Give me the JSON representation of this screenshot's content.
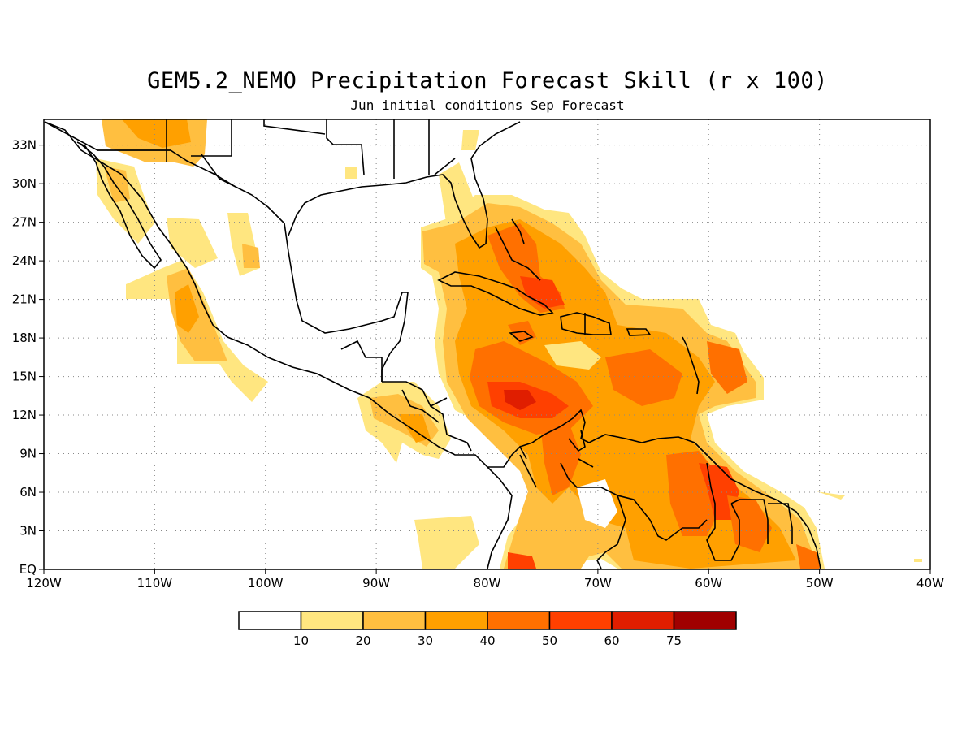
{
  "title": "GEM5.2_NEMO Precipitation Forecast Skill (r x 100)",
  "subtitle": "Jun initial conditions  Sep Forecast",
  "map": {
    "lon_range": [
      -120,
      -40
    ],
    "lat_range": [
      0,
      35
    ],
    "lon_ticks": [
      "120W",
      "110W",
      "100W",
      "90W",
      "80W",
      "70W",
      "60W",
      "50W",
      "40W"
    ],
    "lat_ticks": [
      "EQ",
      "3N",
      "6N",
      "9N",
      "12N",
      "15N",
      "18N",
      "21N",
      "24N",
      "27N",
      "30N",
      "33N"
    ],
    "grid": true
  },
  "colorbar": {
    "labels": [
      "10",
      "20",
      "30",
      "40",
      "50",
      "60",
      "75"
    ],
    "colors": [
      "#ffffff",
      "#ffe680",
      "#ffbf40",
      "#ffa000",
      "#ff7000",
      "#ff4000",
      "#e01e00",
      "#a00000"
    ]
  }
}
